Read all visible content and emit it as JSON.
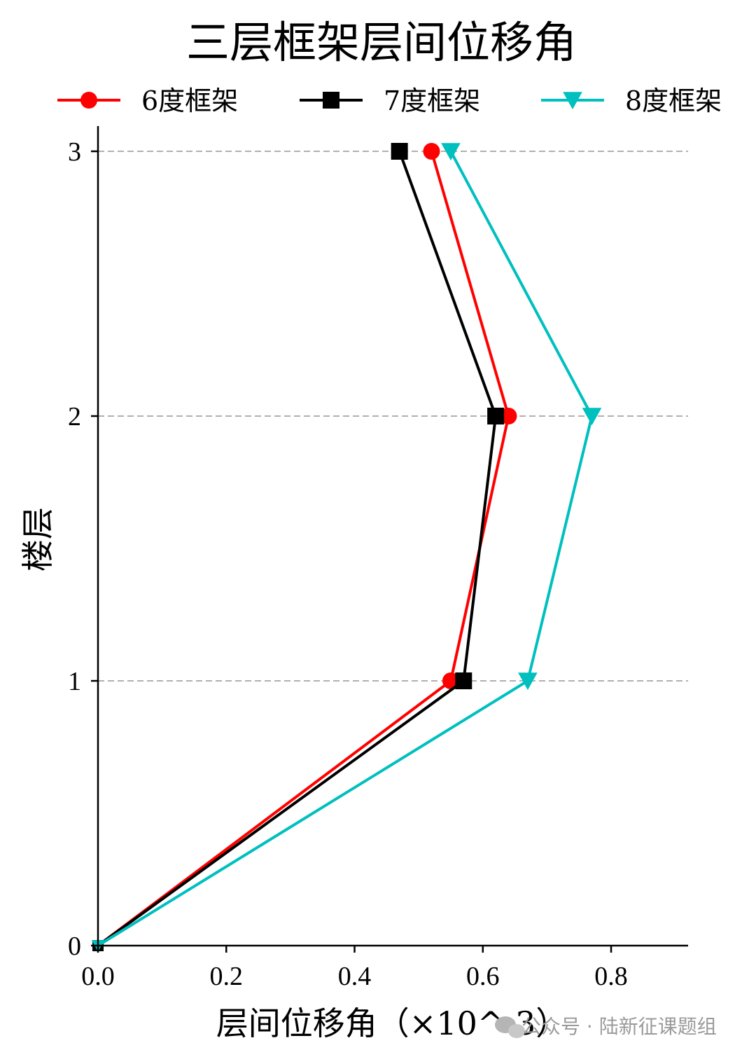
{
  "chart_data": {
    "type": "line",
    "title": "三层框架层间位移角",
    "xlabel": "层间位移角（×10^-3）",
    "ylabel": "楼层",
    "xlim": [
      0,
      0.92
    ],
    "ylim": [
      0,
      3.1
    ],
    "xticks": [
      0.0,
      0.2,
      0.4,
      0.6,
      0.8
    ],
    "xtick_labels": [
      "0.0",
      "0.2",
      "0.4",
      "0.6",
      "0.8"
    ],
    "yticks": [
      0,
      1,
      2,
      3
    ],
    "ytick_labels": [
      "0",
      "1",
      "2",
      "3"
    ],
    "grid": "horizontal dashed at y ticks 1–3",
    "legend_position": "top, above plot",
    "series": [
      {
        "name": "6度框架",
        "color": "#ff0000",
        "marker": "circle",
        "x": [
          0.0,
          0.55,
          0.64,
          0.52
        ],
        "y": [
          0,
          1,
          2,
          3
        ]
      },
      {
        "name": "7度框架",
        "color": "#000000",
        "marker": "square",
        "x": [
          0.0,
          0.57,
          0.62,
          0.47
        ],
        "y": [
          0,
          1,
          2,
          3
        ]
      },
      {
        "name": "8度框架",
        "color": "#00bfbf",
        "marker": "triangle-down",
        "x": [
          0.0,
          0.67,
          0.77,
          0.55
        ],
        "y": [
          0,
          1,
          2,
          3
        ]
      }
    ]
  },
  "watermark": {
    "icon": "wechat-icon",
    "text": "公众号 · 陆新征课题组"
  }
}
